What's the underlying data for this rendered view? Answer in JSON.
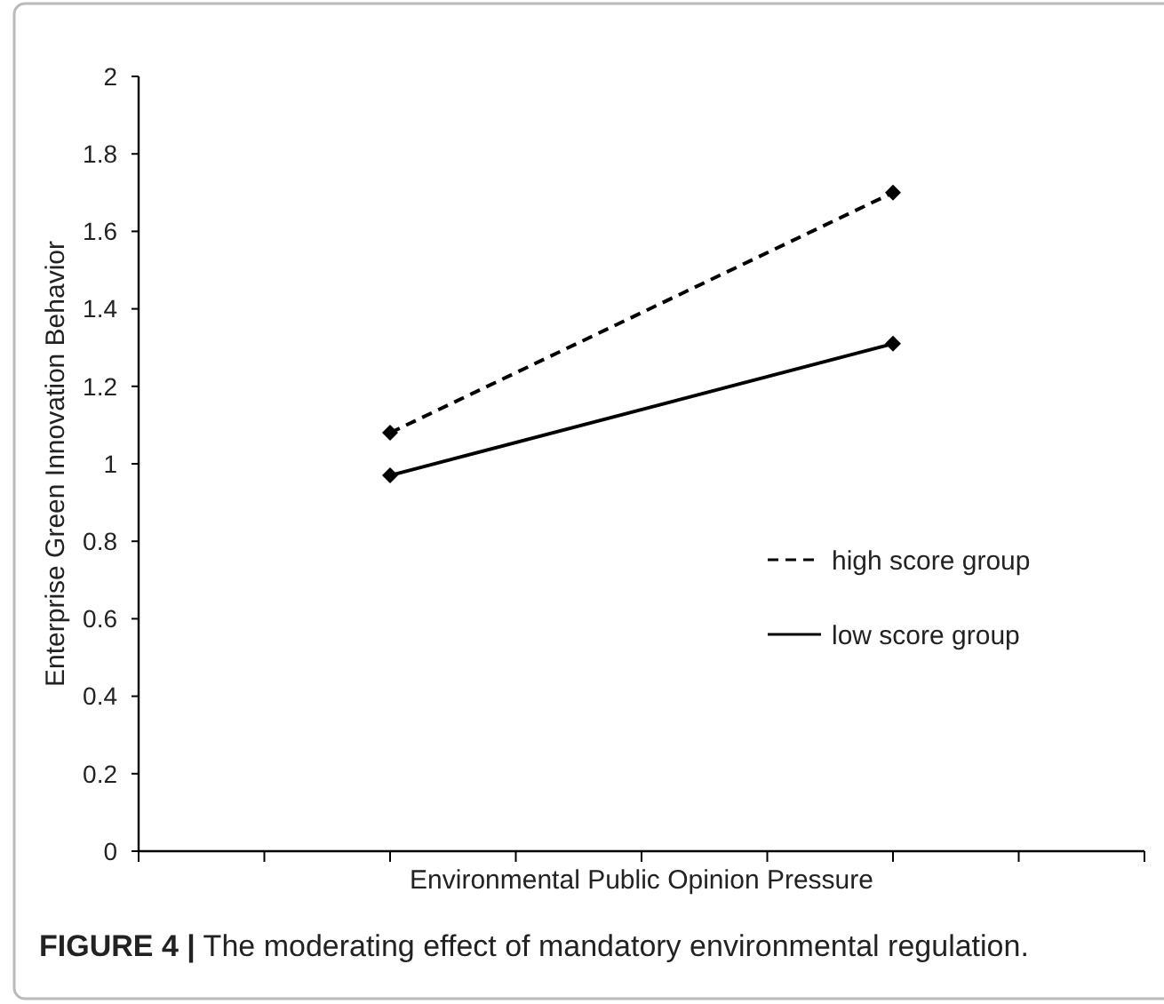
{
  "chart_data": {
    "type": "line",
    "xlabel": "Environmental Public Opinion Pressure",
    "ylabel": "Enterprise Green Innovation Behavior",
    "categories": [
      null,
      null
    ],
    "ylim": [
      0,
      2
    ],
    "yticks": [
      0,
      0.2,
      0.4,
      0.6,
      0.8,
      1,
      1.2,
      1.4,
      1.6,
      1.8,
      2
    ],
    "tick_labels": "y",
    "marker": "diamond",
    "legend": "right",
    "grid": false,
    "series": [
      {
        "name": "high score group",
        "color": "#000000",
        "values": [
          1.08,
          1.7
        ],
        "line_style": "dashed"
      },
      {
        "name": "low score group",
        "color": "#000000",
        "values": [
          0.97,
          1.31
        ],
        "line_style": "solid"
      }
    ],
    "annotations": [
      "FIGURE 4 | The moderating effect of mandatory environmental regulation."
    ]
  }
}
